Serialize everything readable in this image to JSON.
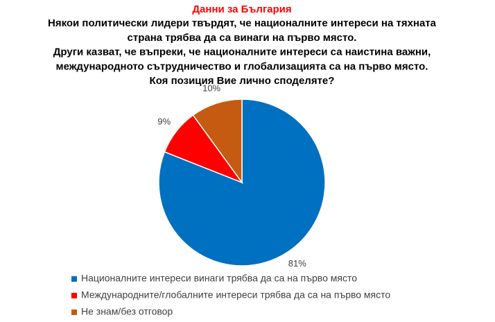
{
  "chart_data": {
    "type": "pie",
    "title": "Данни за България",
    "subtitle": [
      "Някои политически лидери твърдят, че националните интереси на тяхната",
      "страна трябва да са винаги на първо място.",
      "Други казват, че въпреки, че националните интереси са наистина важни,",
      "международното сътрудничество и глобализацията са на първо място.",
      "Коя позиция Вие лично споделяте?"
    ],
    "categories": [
      "Националните интереси винаги трябва да са на първо място",
      "Международните/глобалните интереси трябва да са на първо място",
      "Не знам/без отговор"
    ],
    "values": [
      81,
      9,
      10
    ],
    "value_labels": [
      "81%",
      "9%",
      "10%"
    ],
    "colors": [
      "#0070c0",
      "#ff0000",
      "#c55a11"
    ]
  }
}
